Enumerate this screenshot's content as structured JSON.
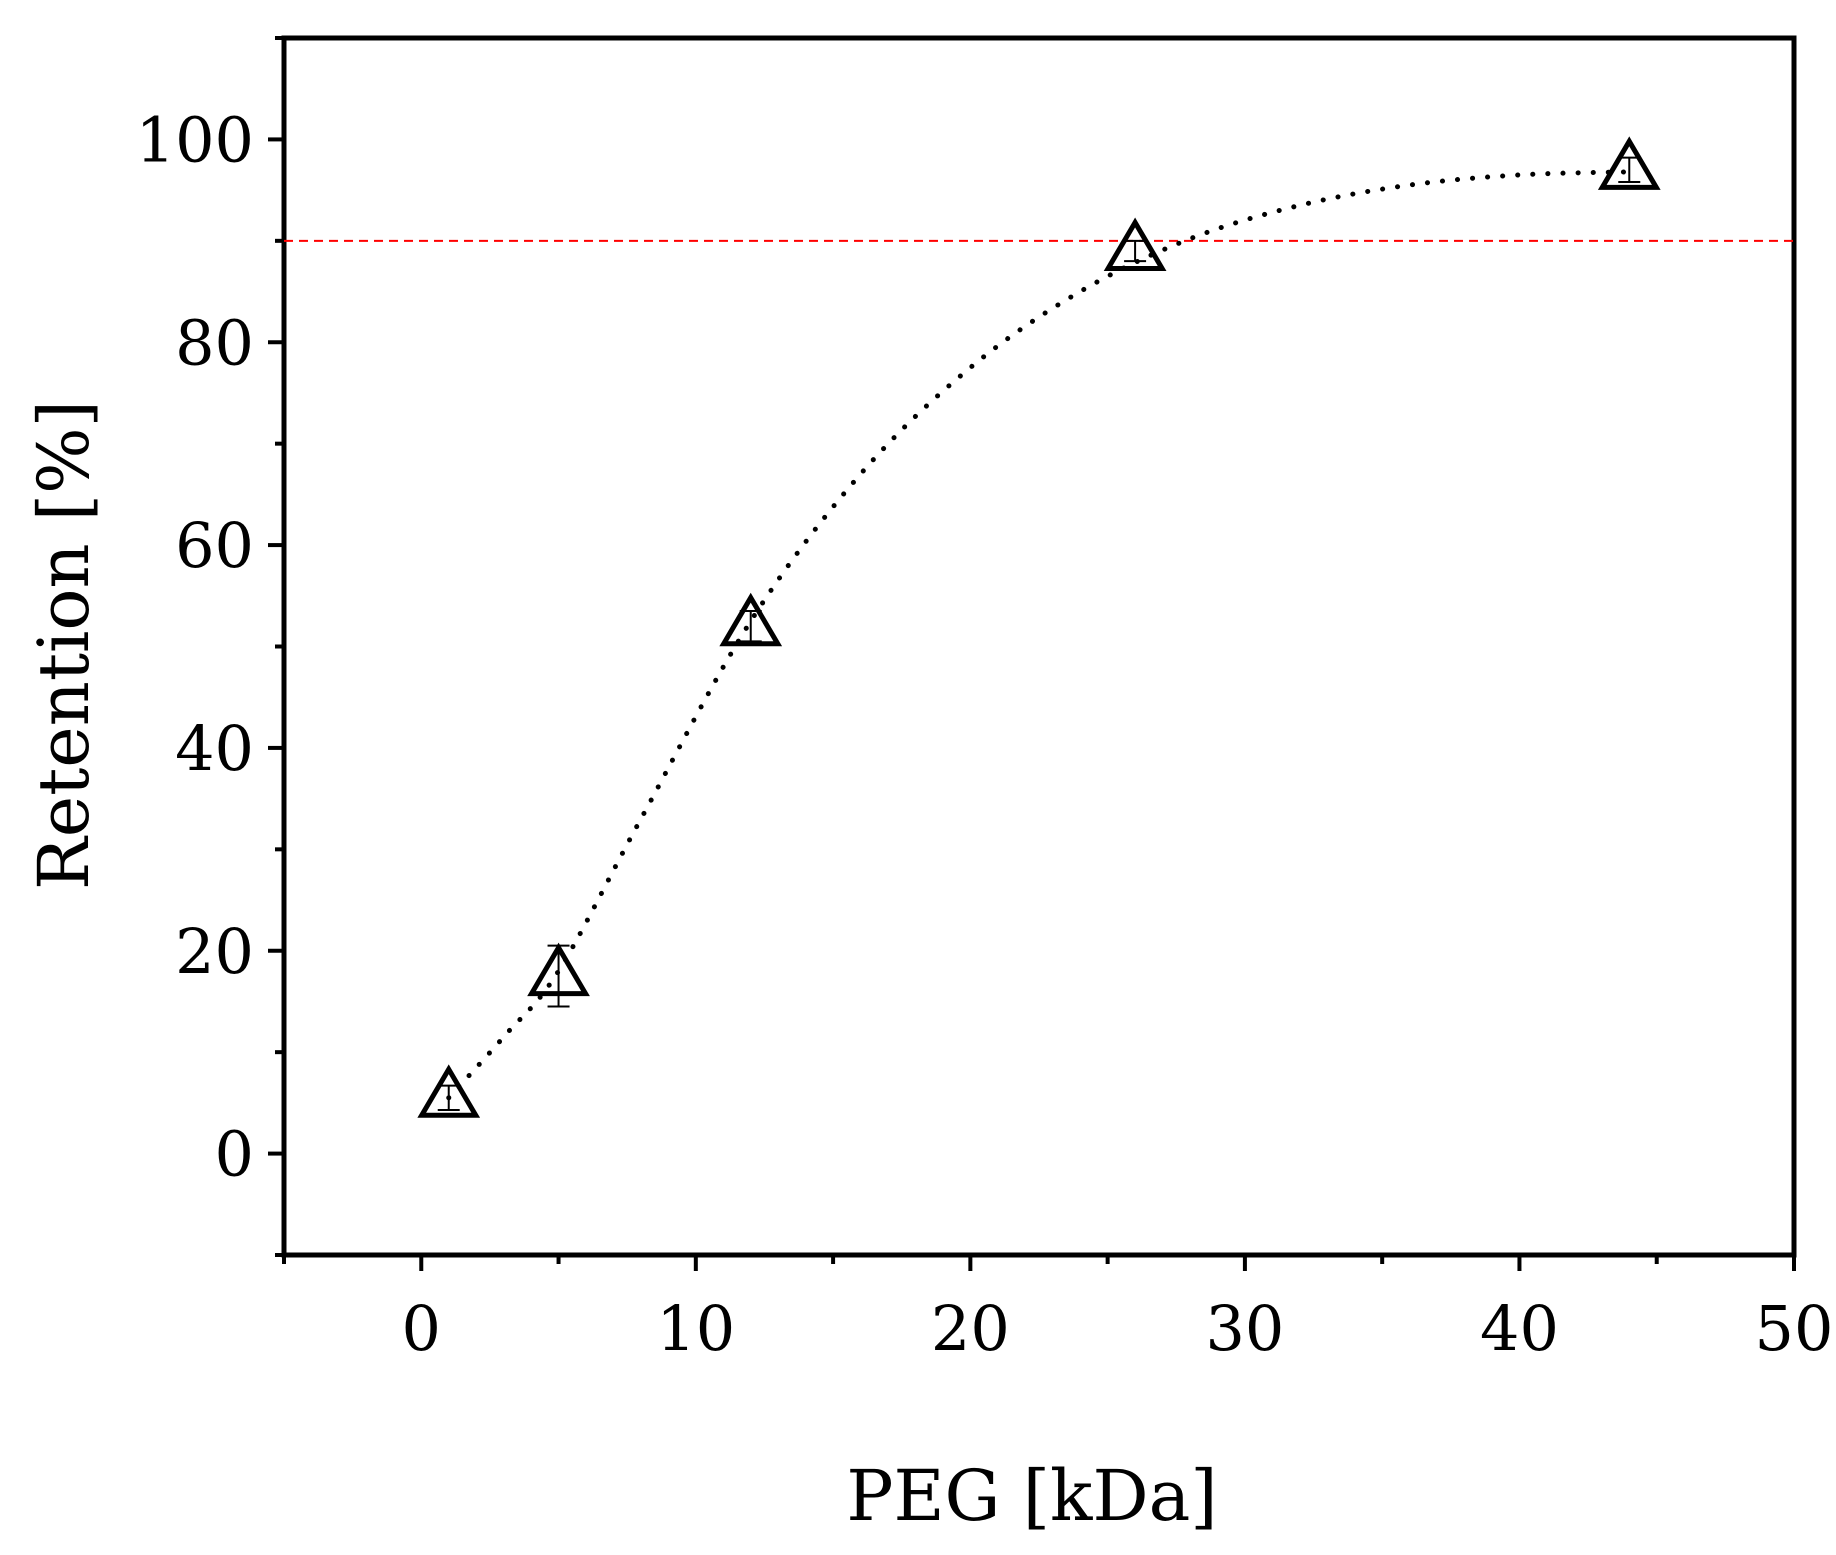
{
  "chart_data": {
    "type": "scatter",
    "title": "",
    "xlabel": "PEG [kDa]",
    "ylabel": "Retention [%]",
    "xlim": [
      -5,
      50
    ],
    "ylim": [
      -10,
      110
    ],
    "xticks": [
      0,
      10,
      20,
      30,
      40,
      50
    ],
    "yticks": [
      0,
      20,
      40,
      60,
      80,
      100
    ],
    "grid": false,
    "legend": "none",
    "series": [
      {
        "marker": "open-triangle",
        "color": "#000000",
        "x": [
          1,
          5,
          12,
          26,
          44
        ],
        "y": [
          5.5,
          17.5,
          52,
          89,
          97
        ],
        "error": [
          1.2,
          3.0,
          1.5,
          1.0,
          1.2
        ]
      }
    ],
    "fit": {
      "style": "dotted",
      "color": "#000000",
      "x": [
        1,
        3,
        5,
        8,
        12,
        16,
        20,
        24,
        28,
        32,
        36,
        40,
        44
      ],
      "y": [
        5.5,
        11.5,
        18.0,
        33.0,
        52.5,
        67.0,
        77.5,
        85.0,
        90.2,
        93.5,
        95.5,
        96.5,
        96.8
      ]
    },
    "reference_line": {
      "y": 90,
      "style": "dashed",
      "color": "#ff0000"
    }
  }
}
